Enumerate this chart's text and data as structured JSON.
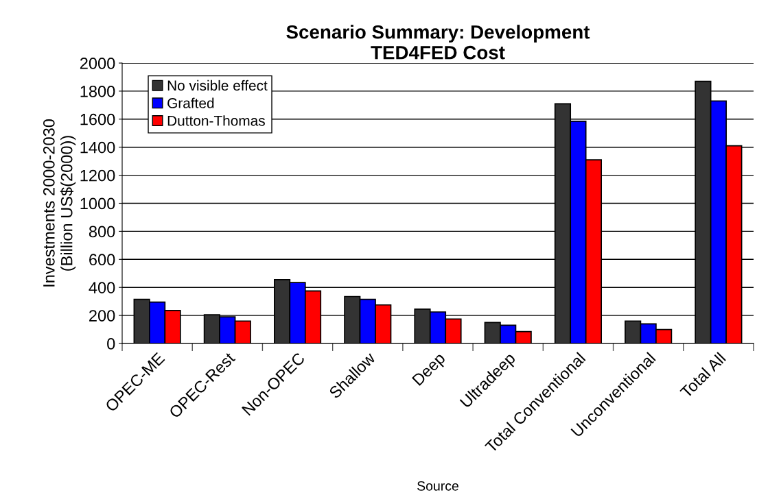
{
  "chart_data": {
    "type": "bar",
    "title": "Scenario Summary: Development\nTED4FED Cost",
    "xlabel": "Source",
    "ylabel": "Investments 2000-2030\n(Billion US$(2000))",
    "categories": [
      "OPEC-ME",
      "OPEC-Rest",
      "Non-OPEC",
      "Shallow",
      "Deep",
      "Ultradeep",
      "Total Conventional",
      "Unconventional",
      "Total All"
    ],
    "series": [
      {
        "name": "No visible effect",
        "color": "#333333",
        "values": [
          315,
          205,
          455,
          335,
          245,
          150,
          1710,
          160,
          1870
        ]
      },
      {
        "name": "Grafted",
        "color": "#0000ff",
        "values": [
          295,
          190,
          435,
          315,
          225,
          130,
          1585,
          140,
          1730
        ]
      },
      {
        "name": "Dutton-Thomas",
        "color": "#ff0000",
        "values": [
          235,
          160,
          375,
          275,
          175,
          85,
          1310,
          100,
          1410
        ]
      }
    ],
    "ylim": [
      0,
      2000
    ],
    "yticks": [
      0,
      200,
      400,
      600,
      800,
      1000,
      1200,
      1400,
      1600,
      1800,
      2000
    ],
    "grid": "y",
    "legend": "top left"
  }
}
